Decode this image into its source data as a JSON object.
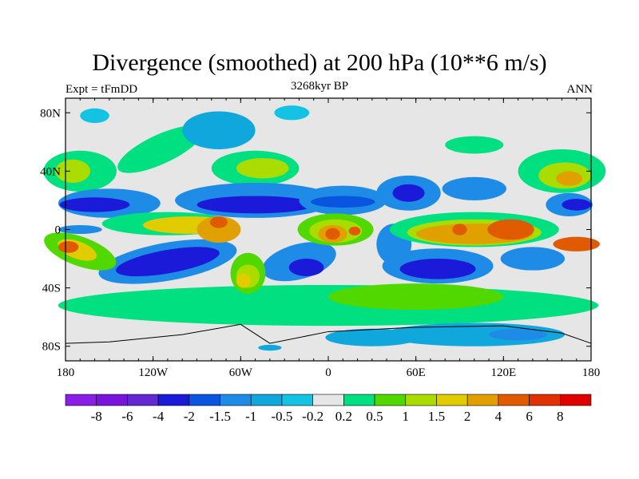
{
  "title": "Divergence (smoothed) at 200 hPa (10**6 m/s)",
  "left_string": "Expt = tFmDD",
  "center_string": "3268kyr BP",
  "right_string": "ANN",
  "chart_data": {
    "type": "heatmap",
    "projection": "cylindrical equidistant",
    "xlim": [
      -180,
      180
    ],
    "ylim": [
      -90,
      90
    ],
    "x_ticks": [
      {
        "v": -180,
        "label": "180"
      },
      {
        "v": -120,
        "label": "120W"
      },
      {
        "v": -60,
        "label": "60W"
      },
      {
        "v": 0,
        "label": "0"
      },
      {
        "v": 60,
        "label": "60E"
      },
      {
        "v": 120,
        "label": "120E"
      },
      {
        "v": 180,
        "label": "180"
      }
    ],
    "y_ticks": [
      {
        "v": 80,
        "label": "80N"
      },
      {
        "v": 40,
        "label": "40N"
      },
      {
        "v": 0,
        "label": "0"
      },
      {
        "v": -40,
        "label": "40S"
      },
      {
        "v": -80,
        "label": "80S"
      }
    ],
    "colorbar": {
      "labels": [
        "-8",
        "-6",
        "-4",
        "-2",
        "-1.5",
        "-1",
        "-0.5",
        "-0.2",
        "0.2",
        "0.5",
        "1",
        "1.5",
        "2",
        "4",
        "6",
        "8"
      ],
      "colors": [
        "#8a1ee6",
        "#7814dc",
        "#6428d2",
        "#1a1ad8",
        "#0a55e0",
        "#1e8ce6",
        "#10a8dc",
        "#14c3e3",
        "#e6e6e6",
        "#00e080",
        "#50d800",
        "#aadc00",
        "#e0cc00",
        "#e0a000",
        "#e05a00",
        "#e03200",
        "#e00000"
      ]
    }
  }
}
